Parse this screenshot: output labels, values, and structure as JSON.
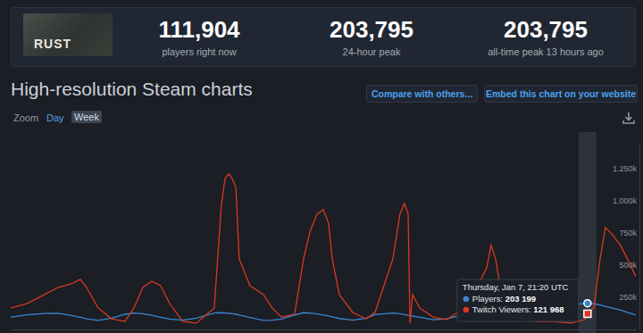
{
  "header": {
    "logo": "RUST",
    "stats": [
      {
        "value": "111,904",
        "caption": "players right now"
      },
      {
        "value": "203,795",
        "caption": "24-hour peak"
      },
      {
        "value": "203,795",
        "caption": "all-time peak 13 hours ago"
      }
    ]
  },
  "page": {
    "title": "High-resolution Steam charts",
    "buttons": [
      "Compare with others...",
      "Embed this chart on your website"
    ],
    "zoom": {
      "label": "Zoom",
      "options": [
        "Day",
        "Week"
      ]
    }
  },
  "chart_data": {
    "type": "line",
    "x": [
      0,
      4.3,
      9.1,
      12.7,
      16.3,
      18.7,
      20.4,
      23.5,
      27.1,
      30.7,
      33.1,
      35.5,
      37.9,
      40.3,
      42.7,
      46.3,
      49.9,
      54.7,
      56.6,
      57.6,
      58.6,
      59.5,
      60.5,
      61.4,
      64.3,
      67.9,
      70.3,
      72.7,
      76.3,
      78.7,
      80.4,
      82.3,
      84.0,
      85.4,
      86.4,
      88.3,
      91.9,
      95.5,
      97.9,
      102.7,
      104.6,
      105.8,
      106.8,
      107.3,
      108.0,
      109.9,
      113.5,
      117.1,
      121.9,
      125.5,
      127.9,
      129.1,
      130.3,
      131.5,
      133.9,
      137.5,
      141.1,
      145.9,
      150.7,
      154.3,
      155,
      156.7,
      158.4,
      159.8,
      161.5,
      163.9,
      166.3,
      168
    ],
    "xlim": [
      0,
      168
    ],
    "ylim": [
      0,
      1450000
    ],
    "yticks": [
      {
        "value": 250000,
        "label": "250k"
      },
      {
        "value": 500000,
        "label": "500k"
      },
      {
        "value": 750000,
        "label": "750k"
      },
      {
        "value": 1000000,
        "label": "1.000k"
      },
      {
        "value": 1250000,
        "label": "1.250k"
      }
    ],
    "grid": false,
    "tick_labels": "y",
    "series": [
      {
        "name": "Players",
        "color": "#3a86d1",
        "marker": "circle",
        "values": [
          95000,
          113000,
          124000,
          126000,
          108000,
          95000,
          82000,
          70000,
          88000,
          118000,
          128000,
          122000,
          110000,
          95000,
          80000,
          72000,
          88000,
          128000,
          130000,
          128000,
          125000,
          122000,
          118000,
          112000,
          92000,
          70000,
          72000,
          80000,
          112000,
          130000,
          128000,
          120000,
          112000,
          105000,
          98000,
          85000,
          72000,
          88000,
          115000,
          128000,
          122000,
          116000,
          110000,
          108000,
          104000,
          95000,
          75000,
          82000,
          115000,
          135000,
          132000,
          128000,
          122000,
          116000,
          102000,
          82000,
          88000,
          140000,
          190000,
          202000,
          203199,
          200000,
          190000,
          180000,
          168000,
          150000,
          128000,
          112000
        ]
      },
      {
        "name": "Twitch Viewers",
        "color": "#d9381e",
        "marker": "square",
        "values": [
          167000,
          201000,
          271000,
          326000,
          354000,
          389000,
          326000,
          167000,
          83000,
          62000,
          167000,
          326000,
          375000,
          340000,
          201000,
          62000,
          49000,
          167000,
          965000,
          1174000,
          1208000,
          1174000,
          1104000,
          549000,
          340000,
          271000,
          167000,
          97000,
          118000,
          549000,
          757000,
          896000,
          931000,
          826000,
          549000,
          271000,
          132000,
          83000,
          132000,
          549000,
          896000,
          979000,
          896000,
          49000,
          271000,
          167000,
          97000,
          76000,
          167000,
          340000,
          479000,
          653000,
          549000,
          340000,
          167000,
          97000,
          62000,
          62000,
          49000,
          76000,
          121968,
          167000,
          549000,
          792000,
          743000,
          653000,
          514000,
          410000
        ]
      }
    ],
    "annotations": [
      {
        "text": "Thursday, Jan 7, 21:20 UTC",
        "x": 155,
        "values": [
          203199,
          121968
        ],
        "value_labels": [
          "203 199",
          "121 968"
        ]
      }
    ]
  }
}
